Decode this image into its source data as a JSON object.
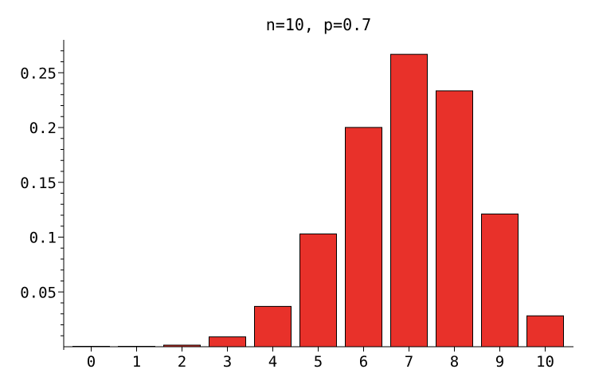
{
  "chart_data": {
    "type": "bar",
    "title": "n=10, p=0.7",
    "xlabel": "",
    "ylabel": "",
    "categories": [
      "0",
      "1",
      "2",
      "3",
      "4",
      "5",
      "6",
      "7",
      "8",
      "9",
      "10"
    ],
    "values": [
      5.9e-06,
      0.000138,
      0.00145,
      0.009,
      0.0368,
      0.1029,
      0.2001,
      0.2668,
      0.2335,
      0.1211,
      0.0282
    ],
    "yticks": [
      0.05,
      0.1,
      0.15,
      0.2,
      0.25
    ],
    "ytick_labels": [
      "0.05",
      "0.1",
      "0.15",
      "0.2",
      "0.25"
    ],
    "ylim": [
      0,
      0.28
    ],
    "grid": false,
    "bar_color": "#e8312a"
  }
}
